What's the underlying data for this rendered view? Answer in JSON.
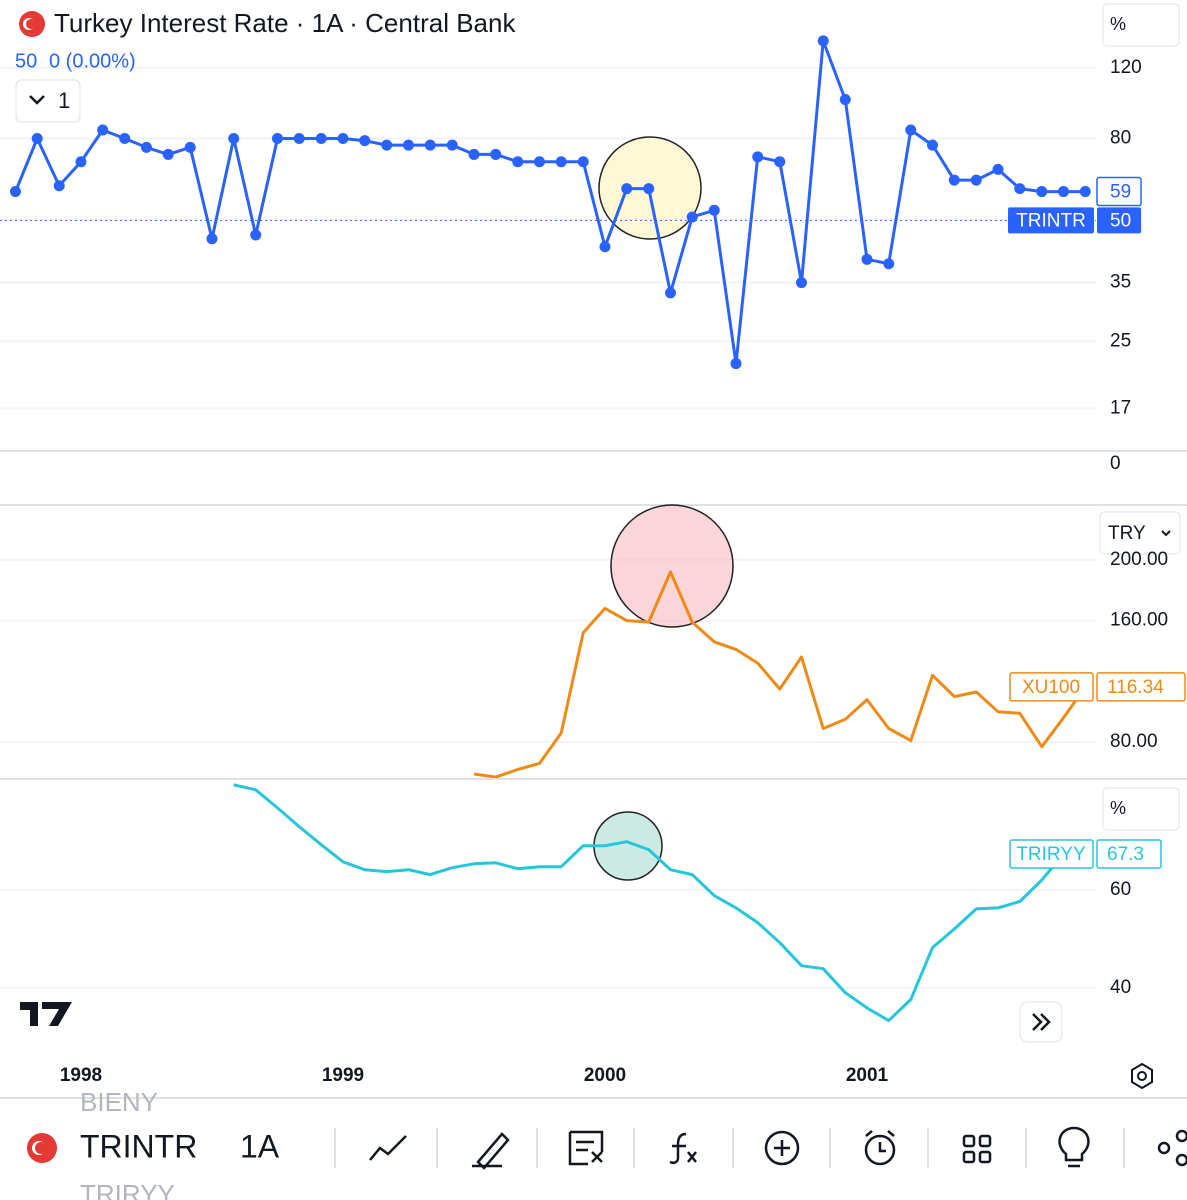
{
  "header": {
    "title": "Turkey Interest Rate · 1A · Central Bank",
    "change": "0 (0.00%)",
    "interval_button": "1"
  },
  "separator_label": "0",
  "toolbar": {
    "symbol": "TRINTR",
    "interval": "1A",
    "symbol_above": "BIENY",
    "symbol_below": "TRIRYY"
  },
  "chart_data": [
    {
      "type": "line",
      "markers": true,
      "log_scale": true,
      "unit": "%",
      "previous_close": 50,
      "x": [
        1997.75,
        1997.833,
        1997.917,
        1998,
        1998.083,
        1998.167,
        1998.25,
        1998.333,
        1998.417,
        1998.5,
        1998.583,
        1998.667,
        1998.75,
        1998.833,
        1998.917,
        1999,
        1999.083,
        1999.167,
        1999.25,
        1999.333,
        1999.417,
        1999.5,
        1999.583,
        1999.667,
        1999.75,
        1999.833,
        1999.917,
        2000,
        2000.083,
        2000.167,
        2000.25,
        2000.333,
        2000.417,
        2000.5,
        2000.583,
        2000.667,
        2000.75,
        2000.833,
        2000.917,
        2001,
        2001.083,
        2001.167,
        2001.25,
        2001.333,
        2001.417,
        2001.5,
        2001.583,
        2001.667,
        2001.75,
        2001.833
      ],
      "series": [
        {
          "name": "TRINTR",
          "color": "#2962ff",
          "values": [
            59,
            80,
            61,
            70,
            84,
            80,
            76,
            73,
            76,
            45,
            80,
            46,
            80,
            80,
            80,
            80,
            79,
            77,
            77,
            77,
            77,
            73,
            73,
            70,
            70,
            70,
            70,
            43,
            60,
            60,
            33,
            51,
            53,
            22,
            72,
            70,
            35,
            140,
            100,
            40,
            39,
            84,
            77,
            63,
            63,
            67,
            60,
            59,
            59,
            59
          ]
        }
      ],
      "xlim": [
        1997.691,
        2001.874
      ],
      "xticks": [
        1998,
        1999,
        2000,
        2001
      ],
      "ylim": [
        13.4,
        177
      ],
      "yticks": [
        17,
        25,
        35,
        80,
        120
      ]
    },
    {
      "type": "line",
      "currency": "TRY",
      "x": [
        1999.5,
        1999.583,
        1999.667,
        1999.75,
        1999.833,
        1999.917,
        2000,
        2000.083,
        2000.167,
        2000.25,
        2000.333,
        2000.417,
        2000.5,
        2000.583,
        2000.667,
        2000.75,
        2000.833,
        2000.917,
        2001,
        2001.083,
        2001.167,
        2001.25,
        2001.333,
        2001.417,
        2001.5,
        2001.583,
        2001.667,
        2001.75,
        2001.833
      ],
      "series": [
        {
          "name": "XU100",
          "color": "#ef8a16",
          "values": [
            59,
            57,
            62,
            66,
            86,
            152,
            168,
            160,
            159,
            192,
            159,
            146,
            141,
            132,
            115,
            136,
            89,
            95,
            108,
            89,
            81,
            124,
            110,
            113,
            100,
            99,
            77,
            96,
            116.34
          ]
        }
      ],
      "xlim": [
        1997.691,
        2001.874
      ],
      "xticks": [
        1998,
        1999,
        2000,
        2001
      ],
      "ylim": [
        56.4,
        235.4
      ],
      "yticks": [
        {
          "value": 80,
          "label": "80.00"
        },
        {
          "value": 160,
          "label": "160.00"
        },
        {
          "value": 200,
          "label": "200.00"
        }
      ]
    },
    {
      "type": "line",
      "unit": "%",
      "x": [
        1998.583,
        1998.667,
        1998.75,
        1998.833,
        1998.917,
        1999,
        1999.083,
        1999.167,
        1999.25,
        1999.333,
        1999.417,
        1999.5,
        1999.583,
        1999.667,
        1999.75,
        1999.833,
        1999.917,
        2000,
        2000.083,
        2000.167,
        2000.25,
        2000.333,
        2000.417,
        2000.5,
        2000.583,
        2000.667,
        2000.75,
        2000.833,
        2000.917,
        2001,
        2001.083,
        2001.167,
        2001.25,
        2001.333,
        2001.417,
        2001.5,
        2001.583,
        2001.667,
        2001.75
      ],
      "series": [
        {
          "name": "TRIRYY",
          "color": "#26c6da",
          "values": [
            81.4,
            80.4,
            76.7,
            72.9,
            69.2,
            65.7,
            64.1,
            63.7,
            64.1,
            63.1,
            64.5,
            65.3,
            65.5,
            64.3,
            64.7,
            64.7,
            69,
            69,
            69.8,
            68.2,
            64.1,
            63.1,
            58.8,
            56.3,
            53.3,
            49.2,
            44.5,
            43.9,
            39,
            35.9,
            33.3,
            37.6,
            48.2,
            52,
            56.1,
            56.3,
            57.6,
            62,
            67.3
          ]
        }
      ],
      "xlim": [
        1997.691,
        2001.874
      ],
      "xticks": [
        1998,
        1999,
        2000,
        2001
      ],
      "ylim": [
        27.3,
        82.4
      ],
      "yticks": [
        40,
        60
      ]
    }
  ]
}
